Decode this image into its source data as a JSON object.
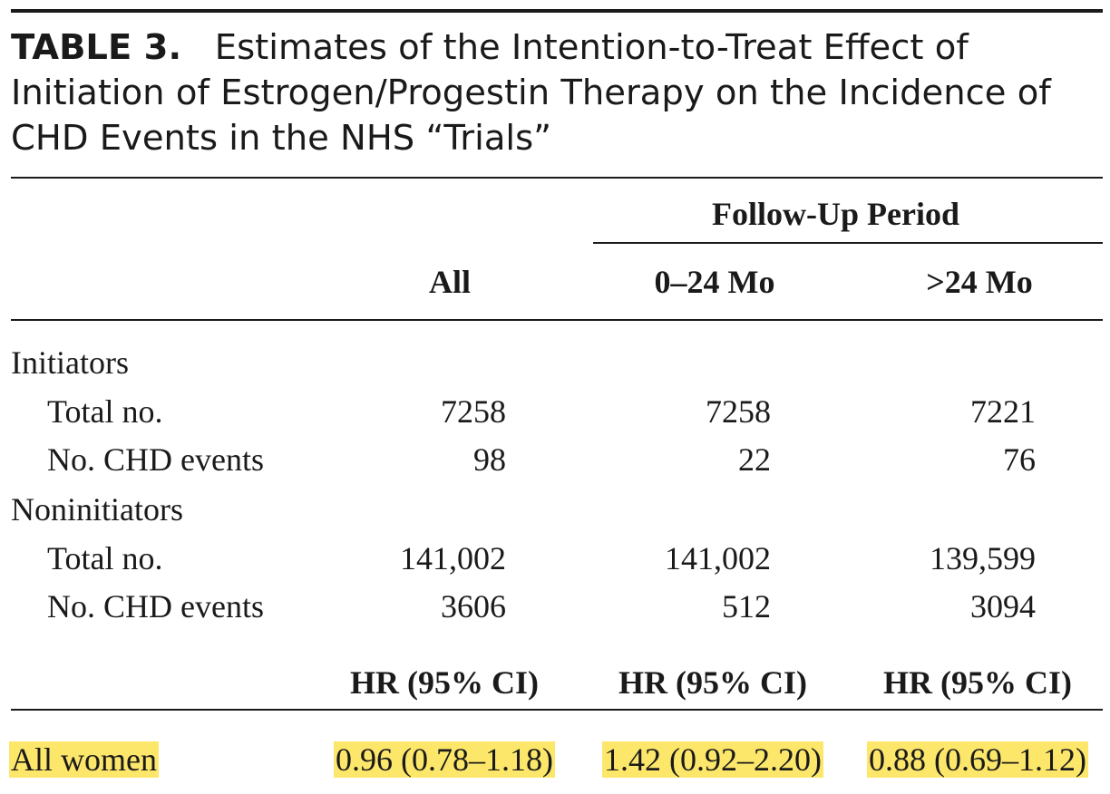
{
  "title": {
    "label": "TABLE 3.",
    "line1": "Estimates of the Intention-to-Treat Effect of",
    "line2": "Initiation of Estrogen/Progestin Therapy on the Incidence of",
    "line3": "CHD Events in the NHS “Trials”"
  },
  "header": {
    "span_label": "Follow-Up Period",
    "columns": [
      "All",
      "0–24 Mo",
      ">24 Mo"
    ]
  },
  "groups": [
    {
      "label": "Initiators",
      "rows": [
        {
          "label": "Total no.",
          "values": [
            "7258",
            "7258",
            "7221"
          ]
        },
        {
          "label": "No. CHD events",
          "values": [
            "98",
            "22",
            "76"
          ]
        }
      ]
    },
    {
      "label": "Noninitiators",
      "rows": [
        {
          "label": "Total no.",
          "values": [
            "141,002",
            "141,002",
            "139,599"
          ]
        },
        {
          "label": "No. CHD events",
          "values": [
            "3606",
            "512",
            "3094"
          ]
        }
      ]
    }
  ],
  "hr_header": [
    "HR (95% CI)",
    "HR (95% CI)",
    "HR (95% CI)"
  ],
  "result": {
    "label": "All women",
    "values": [
      "0.96 (0.78–1.18)",
      "1.42 (0.92–2.20)",
      "0.88 (0.69–1.12)"
    ]
  },
  "colors": {
    "highlight": "#fde76b",
    "text": "#1a1a1a"
  }
}
